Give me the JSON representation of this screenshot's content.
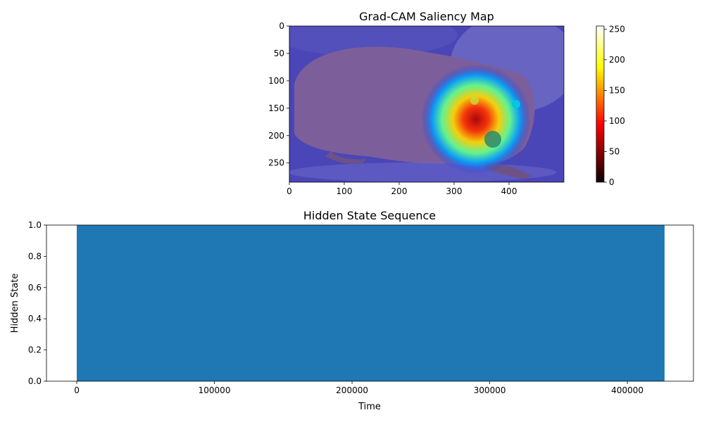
{
  "chart_data": [
    {
      "type": "heatmap",
      "title": "Grad-CAM Saliency Map",
      "xlim": [
        0,
        500
      ],
      "ylim": [
        285,
        0
      ],
      "xticks": [
        0,
        100,
        200,
        300,
        400
      ],
      "yticks": [
        0,
        50,
        100,
        150,
        200,
        250
      ],
      "colorbar": {
        "colormap": "hot",
        "range": [
          0,
          255
        ],
        "ticks": [
          0,
          50,
          100,
          150,
          200,
          250
        ]
      },
      "hotspot": {
        "x": 340,
        "y": 170
      }
    },
    {
      "type": "area",
      "title": "Hidden State Sequence",
      "xlabel": "Time",
      "ylabel": "Hidden State",
      "xlim": [
        -22000,
        448000
      ],
      "ylim": [
        0,
        1
      ],
      "xticks": [
        0,
        100000,
        200000,
        300000,
        400000
      ],
      "yticks": [
        0.0,
        0.2,
        0.4,
        0.6,
        0.8,
        1.0
      ],
      "x": [
        0,
        427000
      ],
      "values": [
        1,
        1
      ],
      "color": "#1f77b4"
    }
  ]
}
